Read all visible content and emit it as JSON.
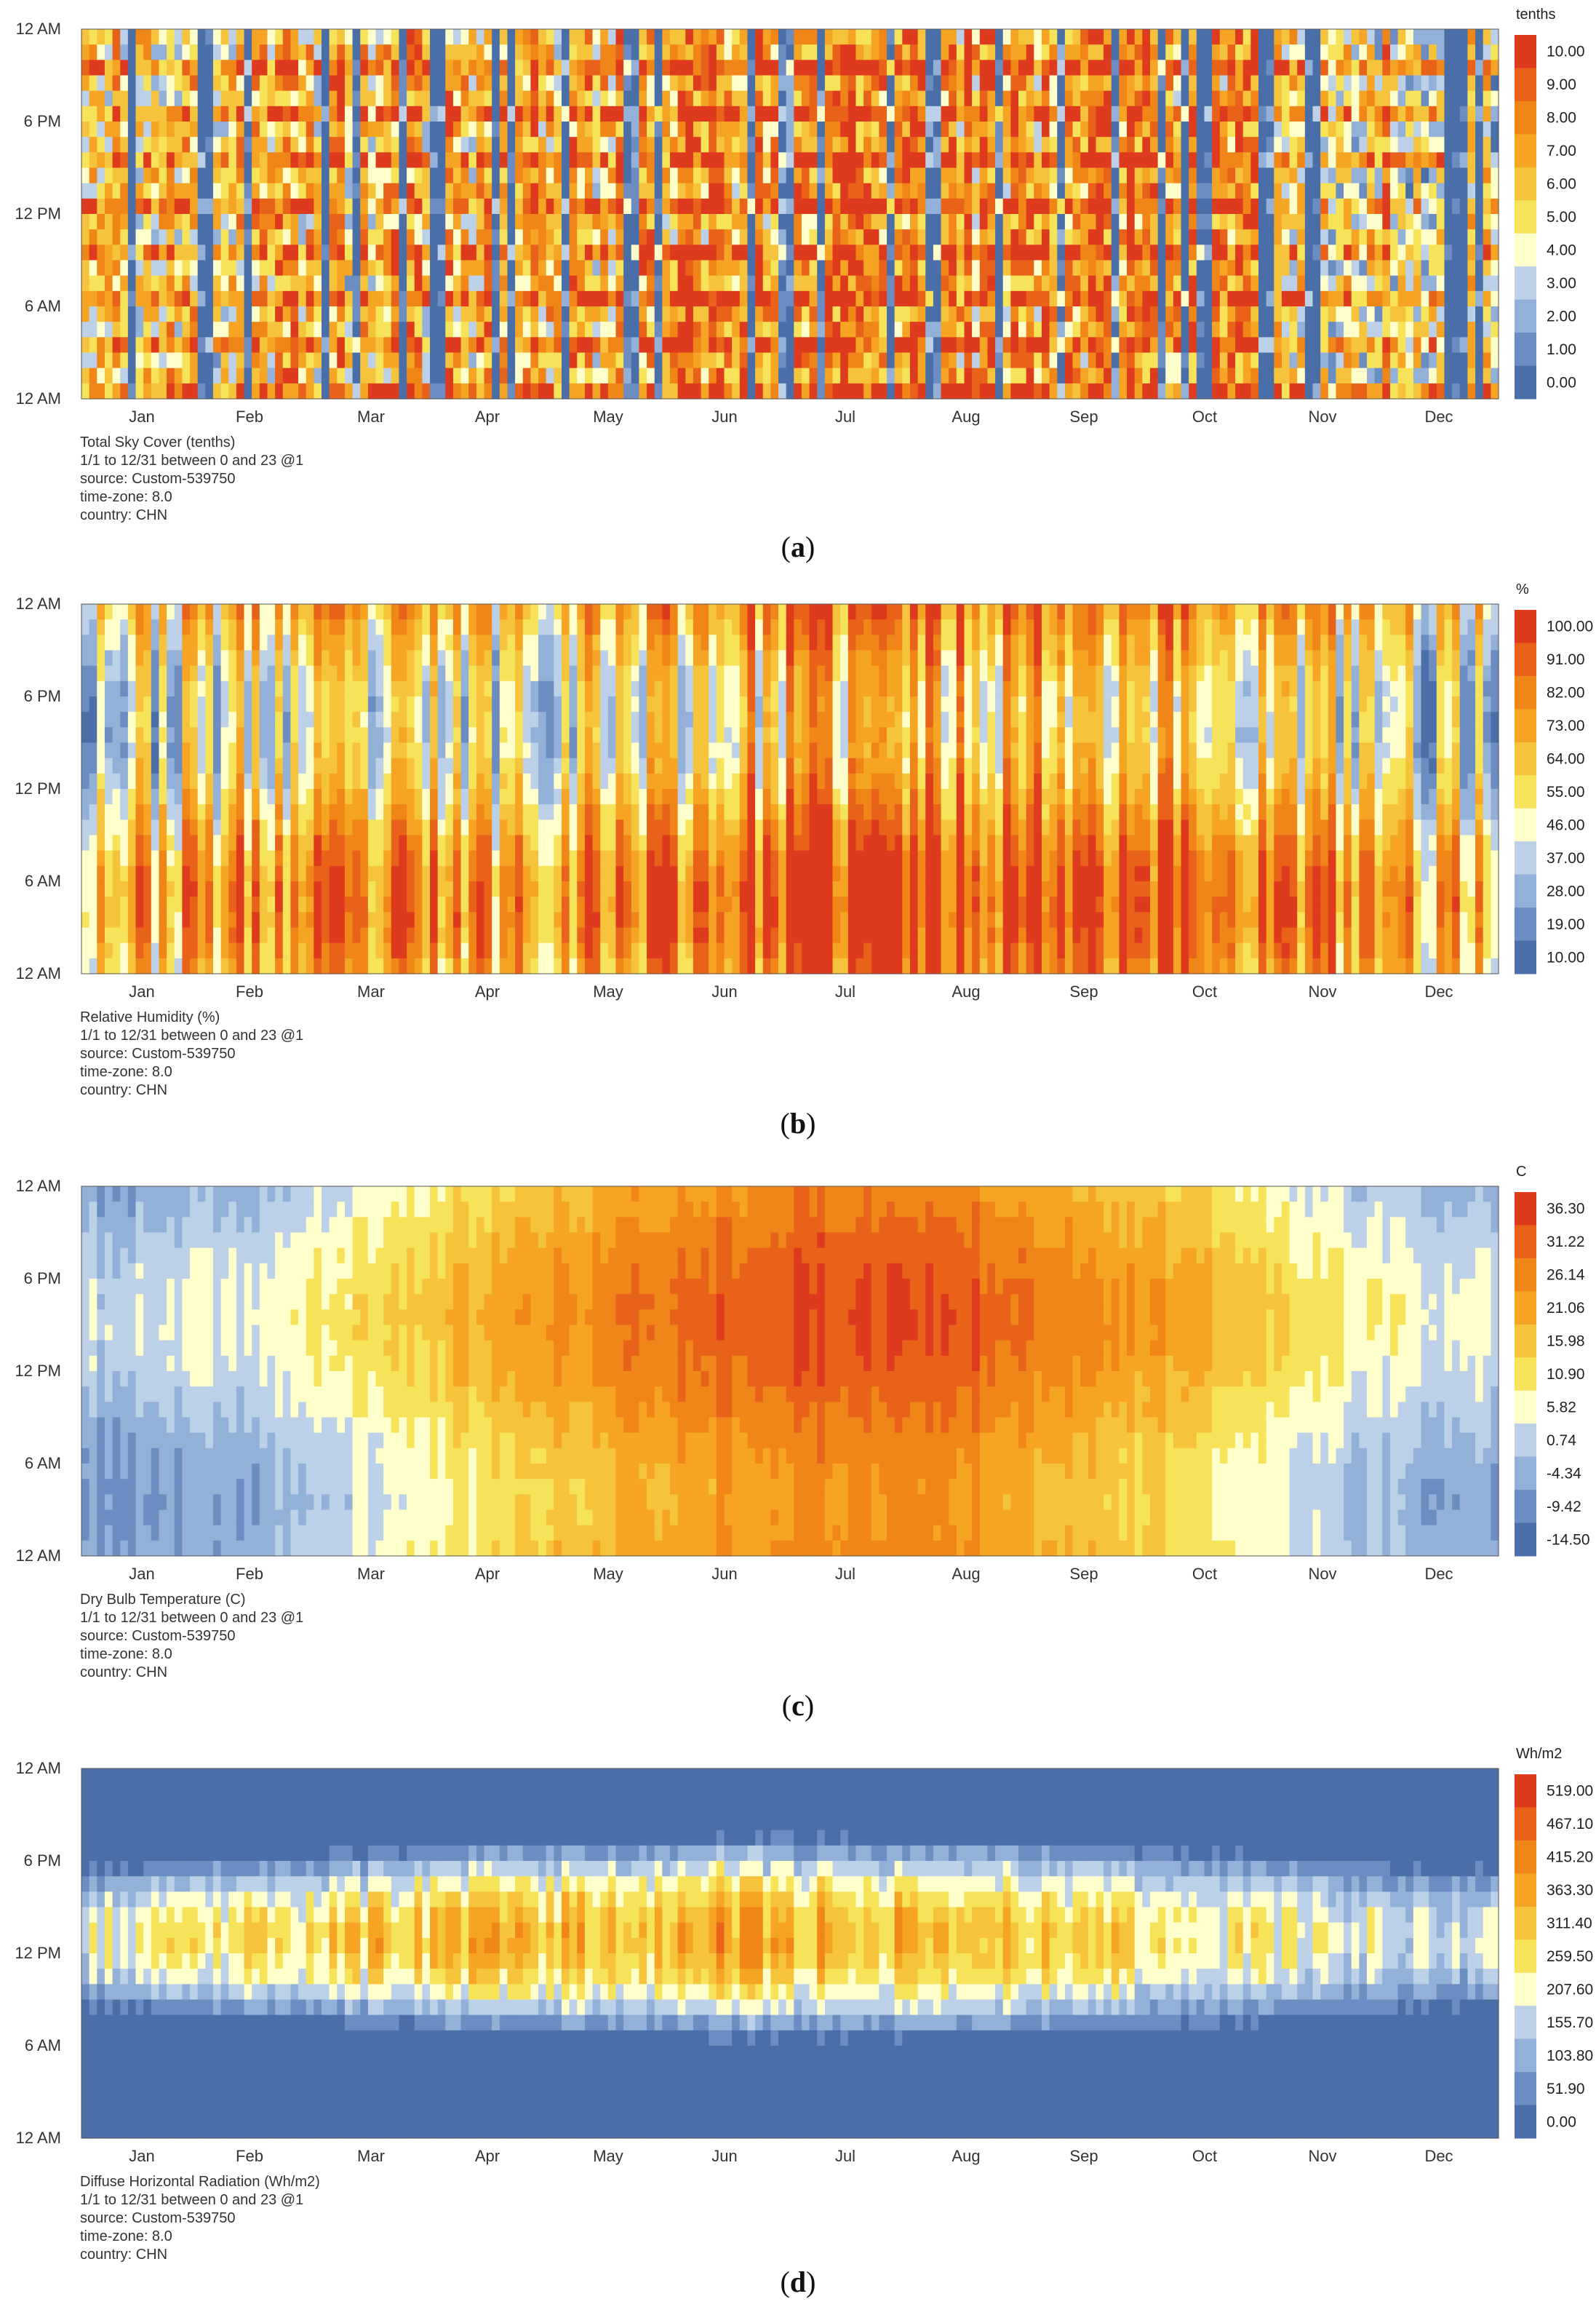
{
  "months": [
    "Jan",
    "Feb",
    "Mar",
    "Apr",
    "May",
    "Jun",
    "Jul",
    "Aug",
    "Sep",
    "Oct",
    "Nov",
    "Dec"
  ],
  "hour_labels": [
    "12 AM",
    "6 PM",
    "12 PM",
    "6 AM",
    "12 AM"
  ],
  "palette": [
    "#4a6fa8",
    "#6b8dc2",
    "#93b0d8",
    "#bcd0e8",
    "#ffffcc",
    "#f7e35a",
    "#f6c43c",
    "#f5a523",
    "#f08518",
    "#e9621a",
    "#de3a1e"
  ],
  "info_lines": [
    "1/1 to 12/31 between 0 and 23 @1",
    "source: Custom-539750",
    "time-zone: 8.0",
    "country: CHN"
  ],
  "chart_data": [
    {
      "type": "heatmap",
      "label": "a",
      "title": "Total Sky Cover (tenths)",
      "unit": "tenths",
      "x": "day of year (months Jan-Dec)",
      "y": "hour of day (12 AM to 12 AM)",
      "range": [
        0.0,
        10.0
      ],
      "legend_ticks": [
        "10.00",
        "9.00",
        "8.00",
        "7.00",
        "6.00",
        "5.00",
        "4.00",
        "3.00",
        "2.00",
        "1.00",
        "0.00"
      ],
      "monthly_mean": [
        4.5,
        5.5,
        5.0,
        5.5,
        6.0,
        7.0,
        7.0,
        6.5,
        7.5,
        6.0,
        4.5,
        3.5
      ]
    },
    {
      "type": "heatmap",
      "label": "b",
      "title": "Relative Humidity (%)",
      "unit": "%",
      "x": "day of year (months Jan-Dec)",
      "y": "hour of day (12 AM to 12 AM)",
      "range": [
        10.0,
        100.0
      ],
      "legend_ticks": [
        "100.00",
        "91.00",
        "82.00",
        "73.00",
        "64.00",
        "55.00",
        "46.00",
        "37.00",
        "28.00",
        "19.00",
        "10.00"
      ],
      "monthly_mean": [
        55,
        60,
        58,
        60,
        66,
        72,
        78,
        78,
        80,
        72,
        62,
        52
      ]
    },
    {
      "type": "heatmap",
      "label": "c",
      "title": "Dry Bulb Temperature (C)",
      "unit": "C",
      "x": "day of year (months Jan-Dec)",
      "y": "hour of day (12 AM to 12 AM)",
      "range": [
        -14.5,
        36.3
      ],
      "legend_ticks": [
        "36.30",
        "31.22",
        "26.14",
        "21.06",
        "15.98",
        "10.90",
        "5.82",
        "0.74",
        "-4.34",
        "-9.42",
        "-14.50"
      ],
      "monthly_mean": [
        -2,
        1,
        8,
        15,
        21,
        26,
        28,
        27,
        21,
        14,
        6,
        0
      ]
    },
    {
      "type": "heatmap",
      "label": "d",
      "title": "Diffuse Horizontal Radiation (Wh/m2)",
      "unit": "Wh/m2",
      "x": "day of year (months Jan-Dec)",
      "y": "hour of day (12 AM to 12 AM)",
      "range": [
        0.0,
        519.0
      ],
      "legend_ticks": [
        "519.00",
        "467.10",
        "415.20",
        "363.30",
        "311.40",
        "259.50",
        "207.60",
        "155.70",
        "103.80",
        "51.90",
        "0.00"
      ],
      "monthly_mean_noon": [
        220,
        260,
        300,
        320,
        330,
        350,
        340,
        320,
        300,
        250,
        210,
        190
      ]
    }
  ]
}
